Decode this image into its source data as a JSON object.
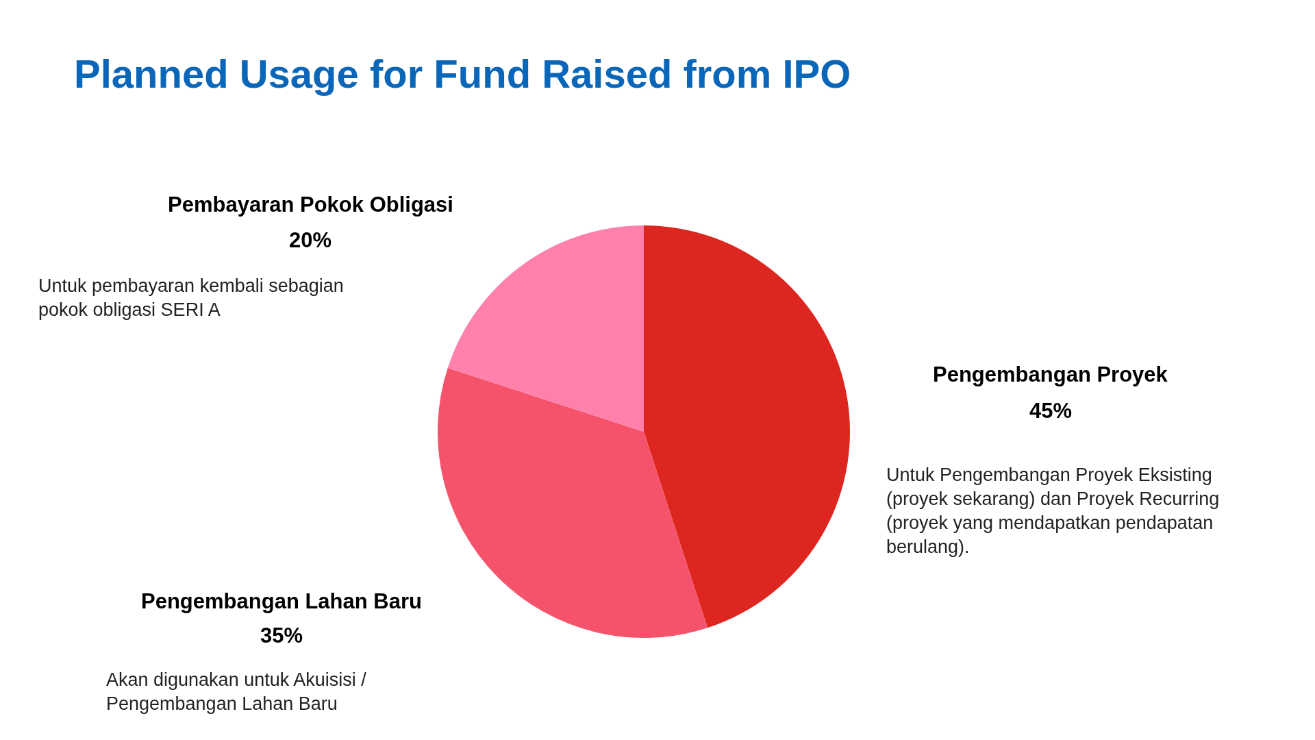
{
  "chart_data": {
    "type": "pie",
    "title": "Planned Usage for Fund Raised from IPO",
    "categories": [
      "Pengembangan Proyek",
      "Pengembangan Lahan Baru",
      "Pembayaran Pokok Obligasi"
    ],
    "values": [
      45,
      35,
      20
    ],
    "value_labels": [
      "45%",
      "35%",
      "20%"
    ],
    "colors": [
      "#dc261f",
      "#f5536b",
      "#ff80aa"
    ],
    "annotations": [
      "Untuk Pengembangan Proyek Eksisting (proyek sekarang) dan Proyek Recurring (proyek yang mendapatkan pendapatan berulang).",
      "Akan digunakan untuk Akuisisi / Pengembangan Lahan Baru",
      "Untuk pembayaran kembali sebagian pokok obligasi SERI A"
    ],
    "legend": false
  }
}
